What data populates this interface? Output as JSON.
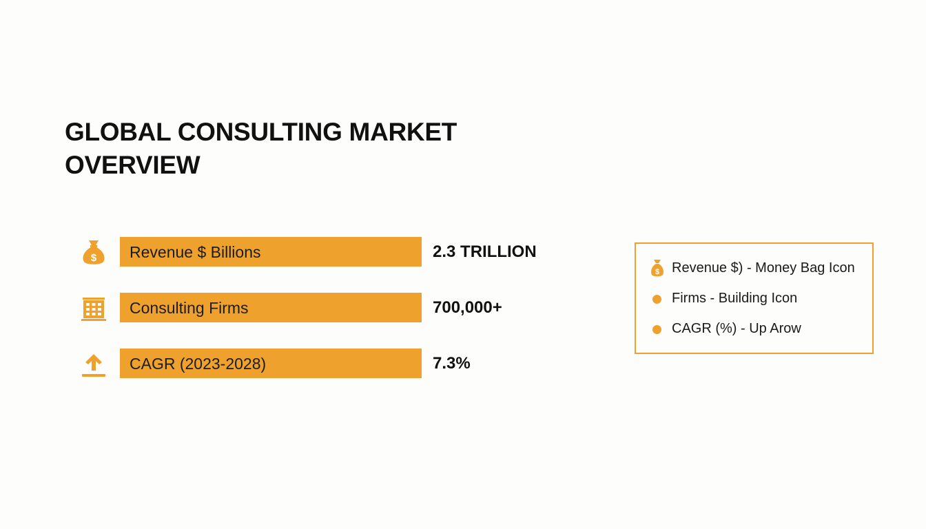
{
  "title": "GLOBAL CONSULTING MARKET OVERVIEW",
  "title_lines": [
    "GLOBAL CONSULTING MARKET",
    "OVERVIEW"
  ],
  "accent_color": "#efa12e",
  "metrics": [
    {
      "icon": "money-bag-icon",
      "label": "Revenue $ Billions",
      "value": "2.3 TRILLION"
    },
    {
      "icon": "building-icon",
      "label": "Consulting Firms",
      "value": "700,000+"
    },
    {
      "icon": "up-arrow-icon",
      "label": "CAGR (2023-2028)",
      "value": "7.3%"
    }
  ],
  "legend": {
    "items": [
      {
        "icon": "money-bag-icon",
        "text": "Revenue $) - Money Bag Icon"
      },
      {
        "icon": "bullet-dot",
        "text": "Firms - Building Icon"
      },
      {
        "icon": "bullet-dot",
        "text": "CAGR (%) - Up Arow"
      }
    ]
  }
}
